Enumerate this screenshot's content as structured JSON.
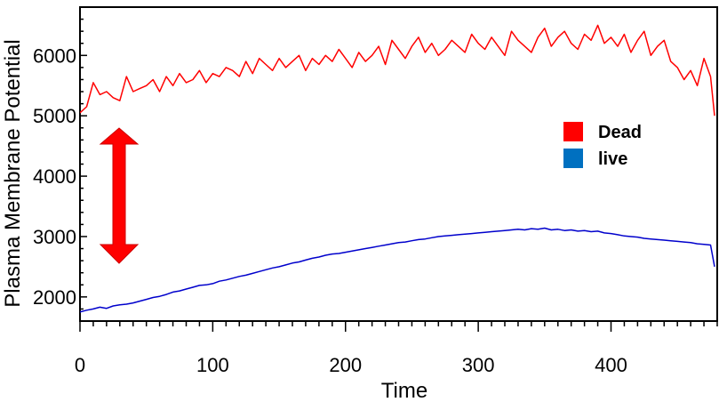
{
  "chart_data": {
    "type": "line",
    "title": "",
    "xlabel": "Time",
    "ylabel": "Plasma Membrane Potential",
    "xlim": [
      0,
      480
    ],
    "ylim": [
      1600,
      6800
    ],
    "xticks": [
      0,
      100,
      200,
      300,
      400
    ],
    "yticks": [
      2000,
      3000,
      4000,
      5000,
      6000
    ],
    "grid": false,
    "legend_position": "right",
    "series": [
      {
        "name": "Dead",
        "color": "#ff0000",
        "x": [
          0,
          5,
          10,
          15,
          20,
          25,
          30,
          35,
          40,
          45,
          50,
          55,
          60,
          65,
          70,
          75,
          80,
          85,
          90,
          95,
          100,
          105,
          110,
          115,
          120,
          125,
          130,
          135,
          140,
          145,
          150,
          155,
          160,
          165,
          170,
          175,
          180,
          185,
          190,
          195,
          200,
          205,
          210,
          215,
          220,
          225,
          230,
          235,
          240,
          245,
          250,
          255,
          260,
          265,
          270,
          275,
          280,
          285,
          290,
          295,
          300,
          305,
          310,
          315,
          320,
          325,
          330,
          335,
          340,
          345,
          350,
          355,
          360,
          365,
          370,
          375,
          380,
          385,
          390,
          395,
          400,
          405,
          410,
          415,
          420,
          425,
          430,
          435,
          440,
          445,
          450,
          455,
          460,
          465,
          470,
          475,
          478
        ],
        "y": [
          5050,
          5150,
          5550,
          5350,
          5400,
          5300,
          5250,
          5650,
          5400,
          5450,
          5500,
          5600,
          5400,
          5650,
          5500,
          5700,
          5550,
          5600,
          5750,
          5550,
          5700,
          5650,
          5800,
          5750,
          5650,
          5900,
          5700,
          5950,
          5850,
          5750,
          5950,
          5800,
          5900,
          6000,
          5750,
          5950,
          5850,
          6000,
          5900,
          6100,
          5950,
          5800,
          6050,
          5900,
          6000,
          6150,
          5850,
          6250,
          6100,
          5950,
          6150,
          6300,
          6050,
          6200,
          6000,
          6100,
          6250,
          6150,
          6050,
          6350,
          6200,
          6100,
          6300,
          6150,
          6000,
          6400,
          6250,
          6150,
          6050,
          6300,
          6450,
          6150,
          6300,
          6400,
          6200,
          6100,
          6350,
          6250,
          6500,
          6200,
          6300,
          6150,
          6350,
          6050,
          6250,
          6400,
          6000,
          6150,
          6250,
          5900,
          5800,
          5600,
          5750,
          5500,
          5950,
          5650,
          5000
        ]
      },
      {
        "name": "live",
        "color": "#0000cc",
        "x": [
          0,
          5,
          10,
          15,
          20,
          25,
          30,
          35,
          40,
          45,
          50,
          55,
          60,
          65,
          70,
          75,
          80,
          85,
          90,
          95,
          100,
          105,
          110,
          115,
          120,
          125,
          130,
          135,
          140,
          145,
          150,
          155,
          160,
          165,
          170,
          175,
          180,
          185,
          190,
          195,
          200,
          205,
          210,
          215,
          220,
          225,
          230,
          235,
          240,
          245,
          250,
          255,
          260,
          265,
          270,
          275,
          280,
          285,
          290,
          295,
          300,
          305,
          310,
          315,
          320,
          325,
          330,
          335,
          340,
          345,
          350,
          355,
          360,
          365,
          370,
          375,
          380,
          385,
          390,
          395,
          400,
          405,
          410,
          415,
          420,
          425,
          430,
          435,
          440,
          445,
          450,
          455,
          460,
          465,
          470,
          475,
          478
        ],
        "y": [
          1750,
          1780,
          1800,
          1830,
          1810,
          1850,
          1870,
          1880,
          1900,
          1930,
          1960,
          1990,
          2010,
          2040,
          2080,
          2100,
          2130,
          2160,
          2190,
          2200,
          2220,
          2260,
          2280,
          2310,
          2340,
          2360,
          2390,
          2420,
          2450,
          2480,
          2500,
          2530,
          2560,
          2580,
          2610,
          2640,
          2660,
          2690,
          2710,
          2720,
          2740,
          2760,
          2780,
          2800,
          2820,
          2840,
          2860,
          2880,
          2900,
          2910,
          2930,
          2950,
          2960,
          2980,
          3000,
          3010,
          3020,
          3030,
          3040,
          3050,
          3060,
          3070,
          3080,
          3090,
          3100,
          3110,
          3120,
          3110,
          3130,
          3120,
          3140,
          3110,
          3120,
          3100,
          3110,
          3090,
          3100,
          3080,
          3090,
          3060,
          3050,
          3030,
          3010,
          3000,
          2990,
          2970,
          2960,
          2950,
          2940,
          2930,
          2920,
          2910,
          2900,
          2880,
          2870,
          2860,
          2500
        ]
      }
    ]
  }
}
